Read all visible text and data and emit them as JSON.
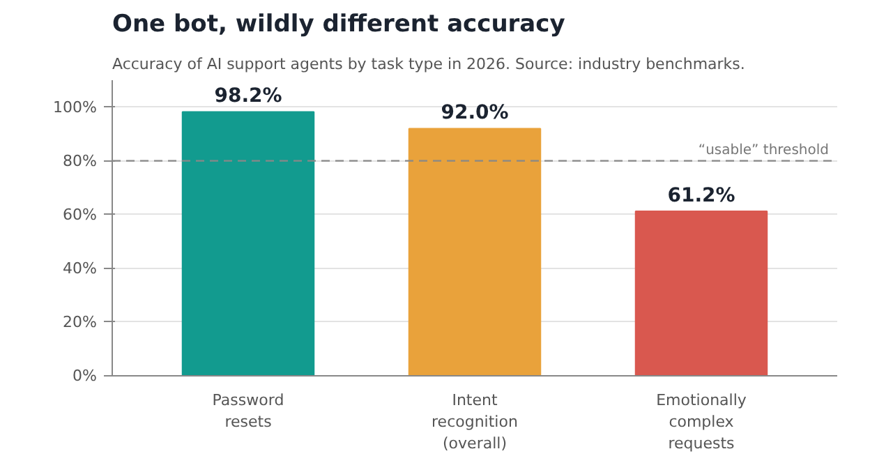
{
  "chart_data": {
    "type": "bar",
    "title": "One bot, wildly different accuracy",
    "subtitle": "Accuracy of AI support agents by task type in 2026. Source: industry benchmarks.",
    "categories": [
      "Password resets",
      "Intent recognition (overall)",
      "Emotionally complex requests"
    ],
    "values": [
      98.2,
      92.0,
      61.2
    ],
    "colors": [
      "#129b8f",
      "#e9a23b",
      "#d9584f"
    ],
    "value_labels": [
      "98.2%",
      "92.0%",
      "61.2%"
    ],
    "ylim": [
      0,
      110
    ],
    "yticks": [
      {
        "value": 0,
        "label": "0%"
      },
      {
        "value": 20,
        "label": "20%"
      },
      {
        "value": 40,
        "label": "40%"
      },
      {
        "value": 60,
        "label": "60%"
      },
      {
        "value": 80,
        "label": "80%"
      },
      {
        "value": 100,
        "label": "100%"
      }
    ],
    "ref_lines": [
      {
        "axis": "y",
        "value": 80,
        "label": "“usable” threshold",
        "color": "#888888",
        "line_style": "dashed"
      }
    ],
    "grid": "y"
  }
}
